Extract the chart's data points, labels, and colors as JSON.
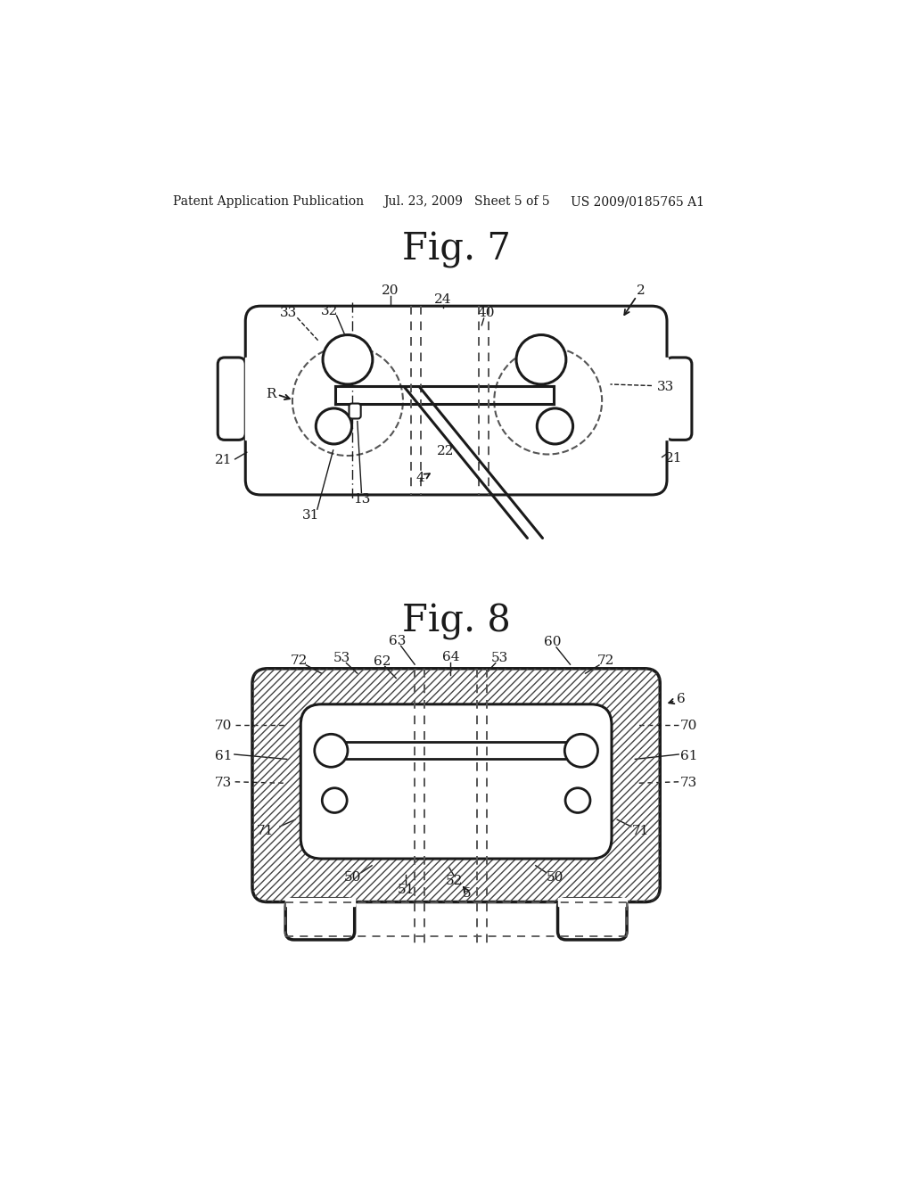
{
  "bg_color": "#ffffff",
  "page_width": 10.24,
  "page_height": 13.2,
  "header_text": "Patent Application Publication",
  "header_date": "Jul. 23, 2009   Sheet 5 of 5",
  "header_patent": "US 2009/0185765 A1",
  "fig7_title": "Fig. 7",
  "fig8_title": "Fig. 8",
  "line_color": "#1a1a1a"
}
